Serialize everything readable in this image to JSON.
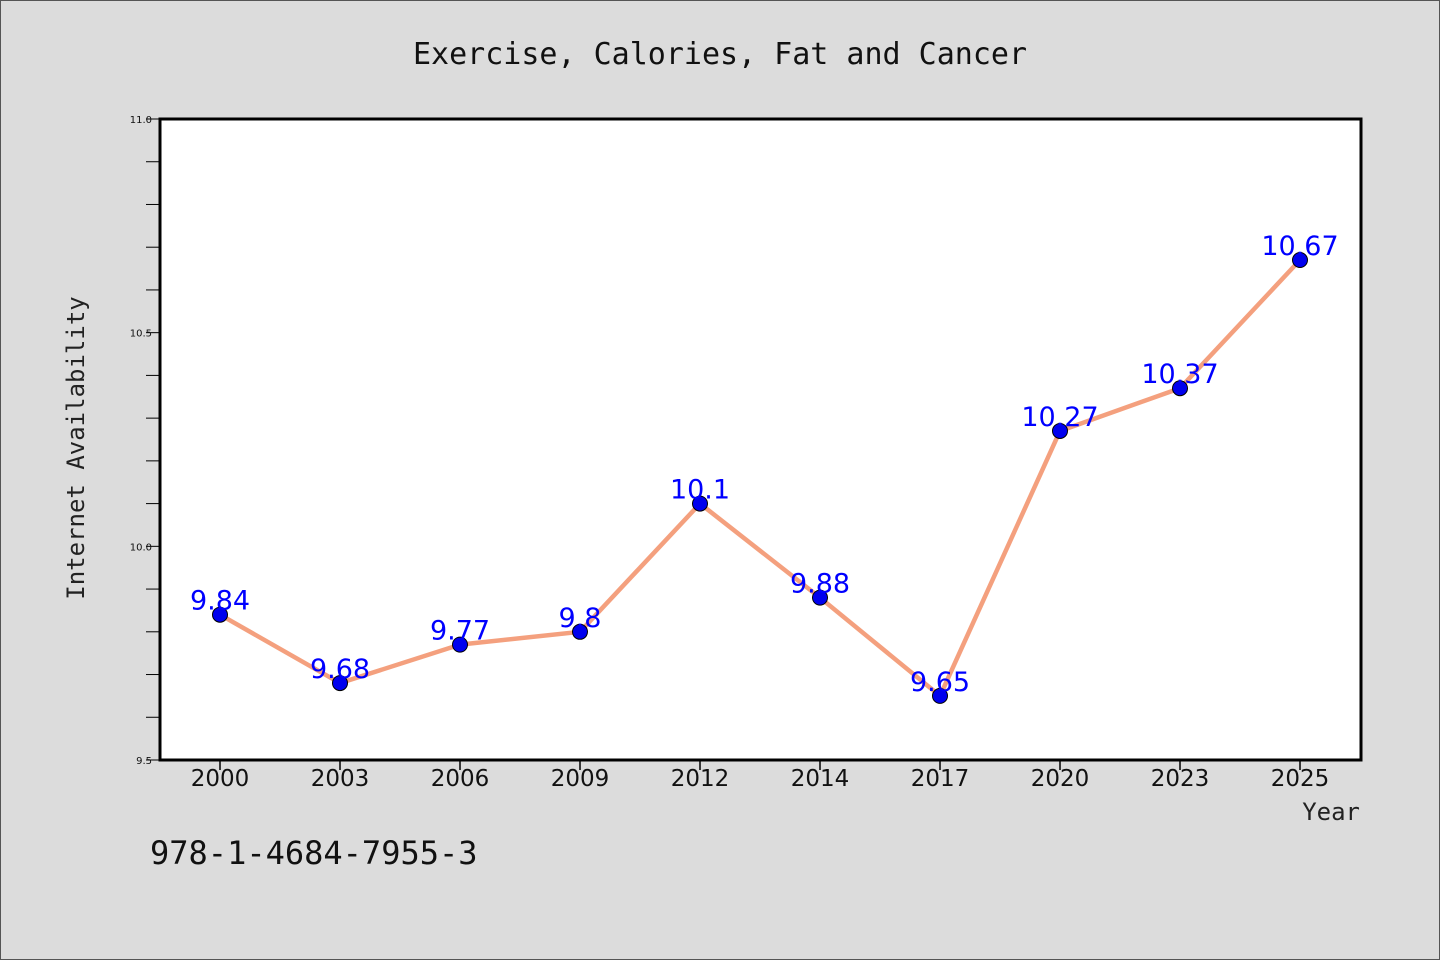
{
  "chart_data": {
    "type": "line",
    "title": "Exercise, Calories, Fat and Cancer",
    "xlabel": "Year",
    "ylabel": "Internet Availability",
    "categories": [
      "2000",
      "2003",
      "2006",
      "2009",
      "2012",
      "2014",
      "2017",
      "2020",
      "2023",
      "2025"
    ],
    "series": [
      {
        "values": [
          9.84,
          9.68,
          9.77,
          9.8,
          10.1,
          9.88,
          9.65,
          10.27,
          10.37,
          10.67
        ],
        "labels": [
          "9.84",
          "9.68",
          "9.77",
          "9.8",
          "10.1",
          "9.88",
          "9.65",
          "10.27",
          "10.37",
          "10.67"
        ]
      }
    ],
    "ylim": [
      9.5,
      11.0
    ],
    "yticks": [
      "9.5",
      "10.0",
      "10.5",
      "11.0"
    ],
    "y_minor_step": 0.1,
    "grid": false,
    "line_color": "#f4a07e",
    "marker_color": "#0000ee",
    "label_color": "#0000ff"
  },
  "footer": {
    "isbn": "978-1-4684-7955-3"
  }
}
